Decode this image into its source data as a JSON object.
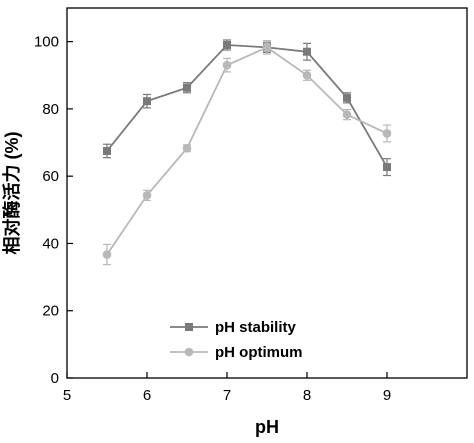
{
  "chart_data": {
    "type": "line",
    "title": "",
    "xlabel": "pH",
    "ylabel": "相对酶活力 (%)",
    "xlim": [
      5,
      10
    ],
    "ylim": [
      0,
      110
    ],
    "xticks": [
      5,
      6,
      7,
      8,
      9
    ],
    "yticks": [
      0,
      20,
      40,
      60,
      80,
      100
    ],
    "grid": false,
    "legend_position": "bottom-center",
    "series": [
      {
        "name": "pH stability",
        "color": "#7a7a7a",
        "marker": "square",
        "x": [
          5.5,
          6,
          6.5,
          7,
          7.5,
          8,
          8.5,
          9
        ],
        "y": [
          67.5,
          82.3,
          86.3,
          99.0,
          98.3,
          97.0,
          83.3,
          62.7
        ],
        "err": [
          2.0,
          2.0,
          1.5,
          1.5,
          1.5,
          2.5,
          1.5,
          2.5
        ]
      },
      {
        "name": "pH optimum",
        "color": "#b8b8b8",
        "marker": "circle",
        "x": [
          5.5,
          6,
          6.5,
          7,
          7.5,
          8,
          8.5,
          9
        ],
        "y": [
          36.7,
          54.3,
          68.3,
          93.0,
          98.3,
          90.0,
          78.3,
          72.7
        ],
        "err": [
          3.0,
          1.5,
          1.0,
          2.0,
          2.0,
          1.5,
          1.5,
          2.5
        ]
      }
    ]
  }
}
